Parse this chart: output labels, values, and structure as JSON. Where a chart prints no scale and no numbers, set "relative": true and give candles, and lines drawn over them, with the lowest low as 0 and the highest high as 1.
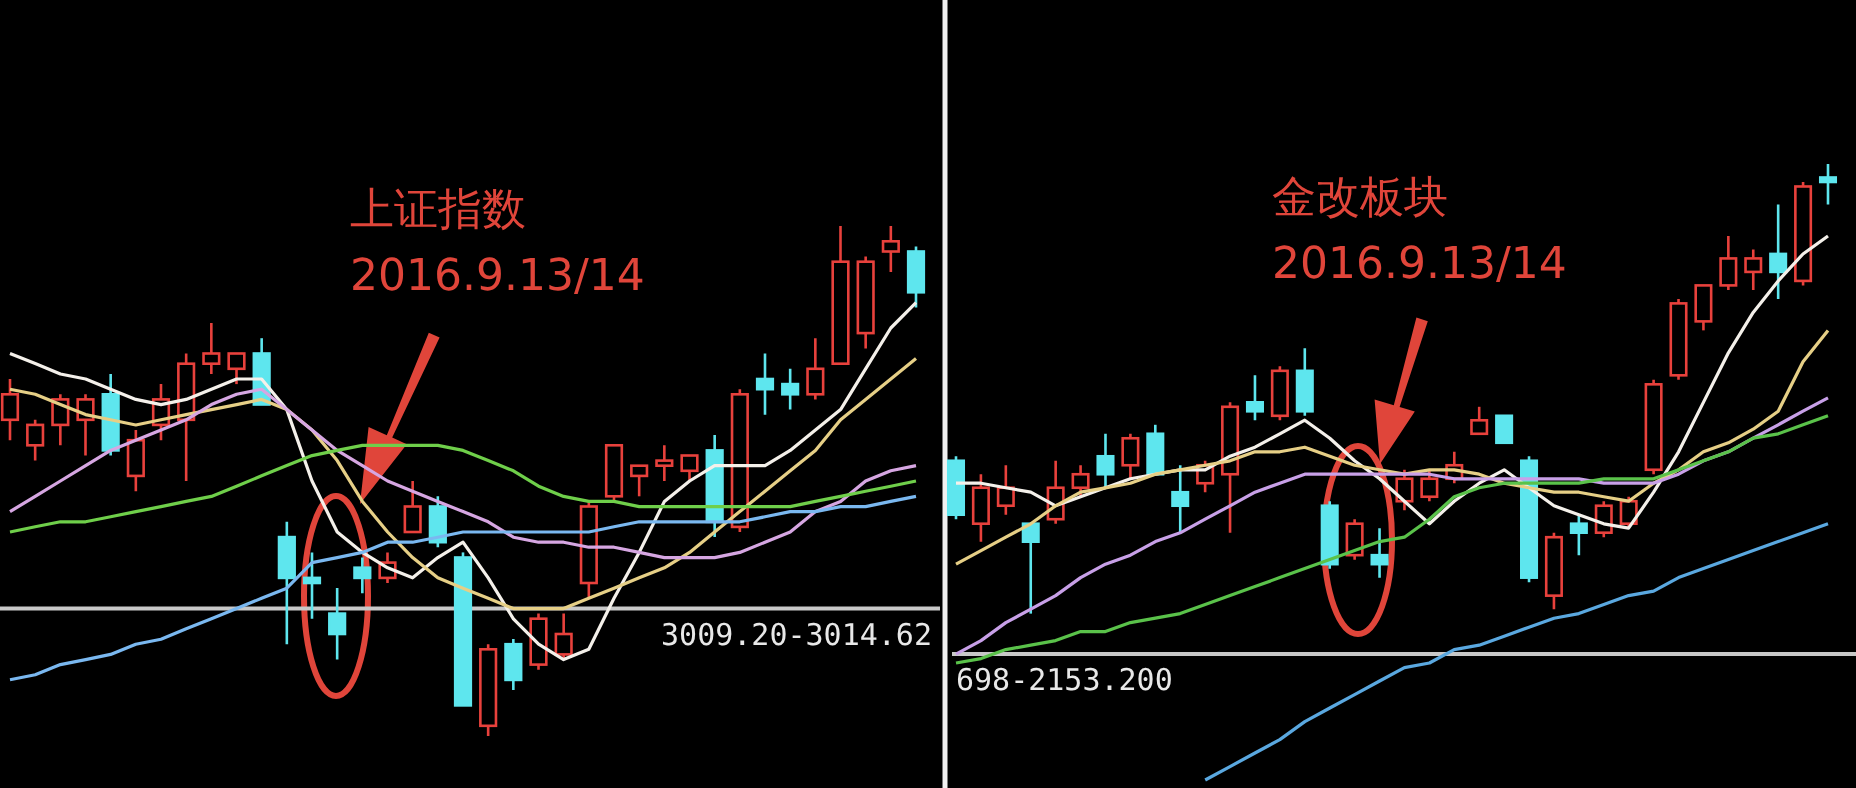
{
  "chart_data": [
    {
      "type": "candlestick",
      "relative": true,
      "categories": [
        null,
        null,
        null,
        null,
        null,
        null,
        null,
        null,
        null,
        null,
        null,
        null,
        null,
        null,
        null,
        null,
        null,
        null,
        null,
        null,
        null,
        null,
        null,
        null,
        null,
        null,
        null,
        null,
        null,
        null,
        null,
        null,
        null,
        null,
        null,
        null,
        null
      ],
      "ohlc": [
        [
          0.62,
          0.7,
          0.58,
          0.67
        ],
        [
          0.57,
          0.62,
          0.54,
          0.61
        ],
        [
          0.61,
          0.67,
          0.57,
          0.66
        ],
        [
          0.62,
          0.67,
          0.55,
          0.66
        ],
        [
          0.67,
          0.71,
          0.55,
          0.56
        ],
        [
          0.51,
          0.6,
          0.48,
          0.58
        ],
        [
          0.61,
          0.69,
          0.58,
          0.66
        ],
        [
          0.62,
          0.75,
          0.5,
          0.73
        ],
        [
          0.73,
          0.81,
          0.71,
          0.75
        ],
        [
          0.72,
          0.75,
          0.69,
          0.75
        ],
        [
          0.75,
          0.78,
          0.65,
          0.65
        ],
        [
          0.39,
          0.42,
          0.18,
          0.31
        ],
        [
          0.31,
          0.36,
          0.23,
          0.3
        ],
        [
          0.24,
          0.29,
          0.15,
          0.2
        ],
        [
          0.33,
          0.35,
          0.28,
          0.31
        ],
        [
          0.31,
          0.36,
          0.3,
          0.34
        ],
        [
          0.4,
          0.5,
          0.4,
          0.45
        ],
        [
          0.45,
          0.47,
          0.37,
          0.38
        ],
        [
          0.35,
          0.36,
          0.06,
          0.06
        ],
        [
          0.02,
          0.18,
          0,
          0.17
        ],
        [
          0.18,
          0.19,
          0.09,
          0.11
        ],
        [
          0.14,
          0.24,
          0.13,
          0.23
        ],
        [
          0.16,
          0.24,
          0.15,
          0.2
        ],
        [
          0.3,
          0.46,
          0.27,
          0.45
        ],
        [
          0.47,
          0.57,
          0.46,
          0.57
        ],
        [
          0.51,
          0.53,
          0.47,
          0.53
        ],
        [
          0.53,
          0.57,
          0.5,
          0.54
        ],
        [
          0.52,
          0.55,
          0.5,
          0.55
        ],
        [
          0.56,
          0.59,
          0.39,
          0.42
        ],
        [
          0.41,
          0.68,
          0.4,
          0.67
        ],
        [
          0.7,
          0.75,
          0.63,
          0.68
        ],
        [
          0.69,
          0.72,
          0.64,
          0.67
        ],
        [
          0.67,
          0.78,
          0.66,
          0.72
        ],
        [
          0.73,
          1,
          0.73,
          0.93
        ],
        [
          0.79,
          0.94,
          0.76,
          0.93
        ],
        [
          0.95,
          1,
          0.91,
          0.97
        ],
        [
          0.95,
          0.96,
          0.84,
          0.87
        ]
      ],
      "series": [
        {
          "type": "line",
          "color": "#f4f0ea",
          "values": [
            0.75,
            0.73,
            0.71,
            0.7,
            0.68,
            0.66,
            0.65,
            0.66,
            0.68,
            0.7,
            0.7,
            0.64,
            0.5,
            0.4,
            0.36,
            0.33,
            0.31,
            0.35,
            0.38,
            0.31,
            0.23,
            0.18,
            0.15,
            0.17,
            0.27,
            0.36,
            0.46,
            0.5,
            0.53,
            0.53,
            0.53,
            0.56,
            0.6,
            0.64,
            0.72,
            0.8,
            0.85
          ]
        },
        {
          "type": "line",
          "color": "#e6cf86",
          "values": [
            0.68,
            0.67,
            0.65,
            0.63,
            0.62,
            0.61,
            0.62,
            0.63,
            0.64,
            0.65,
            0.66,
            0.64,
            0.6,
            0.54,
            0.46,
            0.4,
            0.35,
            0.31,
            0.29,
            0.27,
            0.25,
            0.25,
            0.25,
            0.27,
            0.29,
            0.31,
            0.33,
            0.36,
            0.4,
            0.44,
            0.48,
            0.52,
            0.56,
            0.62,
            0.66,
            0.7,
            0.74
          ]
        },
        {
          "type": "line",
          "color": "#d6a6e2",
          "values": [
            0.44,
            0.47,
            0.5,
            0.53,
            0.56,
            0.58,
            0.6,
            0.62,
            0.65,
            0.67,
            0.68,
            0.64,
            0.6,
            0.56,
            0.53,
            0.5,
            0.48,
            0.46,
            0.44,
            0.42,
            0.39,
            0.38,
            0.38,
            0.37,
            0.37,
            0.36,
            0.35,
            0.35,
            0.35,
            0.36,
            0.38,
            0.4,
            0.44,
            0.46,
            0.5,
            0.52,
            0.53
          ]
        },
        {
          "type": "line",
          "color": "#6fcf4a",
          "values": [
            0.4,
            0.41,
            0.42,
            0.42,
            0.43,
            0.44,
            0.45,
            0.46,
            0.47,
            0.49,
            0.51,
            0.53,
            0.55,
            0.56,
            0.57,
            0.57,
            0.57,
            0.57,
            0.56,
            0.54,
            0.52,
            0.49,
            0.47,
            0.46,
            0.46,
            0.45,
            0.45,
            0.45,
            0.45,
            0.45,
            0.45,
            0.45,
            0.46,
            0.47,
            0.48,
            0.49,
            0.5
          ]
        },
        {
          "type": "line",
          "color": "#7ab8f0",
          "values": [
            0.11,
            0.12,
            0.14,
            0.15,
            0.16,
            0.18,
            0.19,
            0.21,
            0.23,
            0.25,
            0.27,
            0.29,
            0.34,
            0.35,
            0.36,
            0.38,
            0.38,
            0.39,
            0.4,
            0.4,
            0.4,
            0.4,
            0.4,
            0.4,
            0.41,
            0.42,
            0.42,
            0.42,
            0.42,
            0.42,
            0.43,
            0.44,
            0.44,
            0.45,
            0.45,
            0.46,
            0.47
          ]
        }
      ],
      "ref_lines": [
        {
          "axis": "y",
          "value": 0.25,
          "color": "#c8c8c8"
        }
      ],
      "annotations": [
        "上证指数",
        "2016.9.13/14",
        "3009.20-3014.62"
      ]
    },
    {
      "type": "candlestick",
      "relative": true,
      "categories": [
        null,
        null,
        null,
        null,
        null,
        null,
        null,
        null,
        null,
        null,
        null,
        null,
        null,
        null,
        null,
        null,
        null,
        null,
        null,
        null,
        null,
        null,
        null,
        null,
        null,
        null,
        null,
        null,
        null,
        null,
        null,
        null,
        null,
        null,
        null,
        null
      ],
      "ohlc": [
        [
          0.34,
          0.35,
          0.21,
          0.22
        ],
        [
          0.2,
          0.31,
          0.16,
          0.28
        ],
        [
          0.24,
          0.33,
          0.22,
          0.28
        ],
        [
          0.2,
          0.2,
          0,
          0.16
        ],
        [
          0.21,
          0.34,
          0.2,
          0.28
        ],
        [
          0.28,
          0.33,
          0.26,
          0.31
        ],
        [
          0.35,
          0.4,
          0.28,
          0.31
        ],
        [
          0.33,
          0.4,
          0.3,
          0.39
        ],
        [
          0.4,
          0.42,
          0.31,
          0.31
        ],
        [
          0.27,
          0.33,
          0.18,
          0.24
        ],
        [
          0.29,
          0.34,
          0.27,
          0.33
        ],
        [
          0.31,
          0.47,
          0.18,
          0.46
        ],
        [
          0.47,
          0.53,
          0.43,
          0.45
        ],
        [
          0.44,
          0.55,
          0.43,
          0.54
        ],
        [
          0.54,
          0.59,
          0.44,
          0.45
        ],
        [
          0.24,
          0.25,
          0.1,
          0.11
        ],
        [
          0.13,
          0.21,
          0.12,
          0.2
        ],
        [
          0.13,
          0.19,
          0.08,
          0.11
        ],
        [
          0.25,
          0.32,
          0.23,
          0.3
        ],
        [
          0.26,
          0.32,
          0.25,
          0.3
        ],
        [
          0.3,
          0.36,
          0.29,
          0.33
        ],
        [
          0.4,
          0.46,
          0.4,
          0.43
        ],
        [
          0.44,
          0.44,
          0.38,
          0.38
        ],
        [
          0.34,
          0.35,
          0.07,
          0.08
        ],
        [
          0.04,
          0.18,
          0.01,
          0.17
        ],
        [
          0.2,
          0.22,
          0.13,
          0.18
        ],
        [
          0.18,
          0.25,
          0.17,
          0.24
        ],
        [
          0.2,
          0.26,
          0.19,
          0.25
        ],
        [
          0.32,
          0.52,
          0.31,
          0.51
        ],
        [
          0.53,
          0.7,
          0.52,
          0.69
        ],
        [
          0.65,
          0.73,
          0.63,
          0.73
        ],
        [
          0.73,
          0.84,
          0.72,
          0.79
        ],
        [
          0.76,
          0.81,
          0.72,
          0.79
        ],
        [
          0.8,
          0.91,
          0.7,
          0.76
        ],
        [
          0.74,
          0.96,
          0.73,
          0.95
        ],
        [
          0.97,
          1,
          0.91,
          0.96
        ]
      ],
      "series": [
        {
          "type": "line",
          "color": "#f4f0ea",
          "values": [
            0.29,
            0.29,
            0.28,
            0.27,
            0.24,
            0.26,
            0.28,
            0.3,
            0.31,
            0.32,
            0.32,
            0.35,
            0.37,
            0.4,
            0.43,
            0.39,
            0.34,
            0.3,
            0.25,
            0.2,
            0.25,
            0.29,
            0.32,
            0.28,
            0.24,
            0.22,
            0.2,
            0.19,
            0.27,
            0.36,
            0.47,
            0.58,
            0.67,
            0.74,
            0.8,
            0.84
          ]
        },
        {
          "type": "line",
          "color": "#e6cf86",
          "values": [
            0.11,
            0.14,
            0.17,
            0.2,
            0.24,
            0.27,
            0.28,
            0.29,
            0.31,
            0.32,
            0.33,
            0.34,
            0.36,
            0.36,
            0.37,
            0.35,
            0.33,
            0.32,
            0.31,
            0.32,
            0.32,
            0.31,
            0.29,
            0.28,
            0.27,
            0.27,
            0.26,
            0.25,
            0.29,
            0.32,
            0.36,
            0.38,
            0.41,
            0.45,
            0.56,
            0.63
          ]
        },
        {
          "type": "line",
          "color": "#c8a0e8",
          "values": [
            -0.09,
            -0.06,
            -0.02,
            0.01,
            0.04,
            0.08,
            0.11,
            0.13,
            0.16,
            0.18,
            0.21,
            0.24,
            0.27,
            0.29,
            0.31,
            0.31,
            0.31,
            0.31,
            0.31,
            0.31,
            0.3,
            0.3,
            0.3,
            0.3,
            0.3,
            0.3,
            0.29,
            0.29,
            0.29,
            0.31,
            0.34,
            0.36,
            0.39,
            0.42,
            0.45,
            0.48
          ]
        },
        {
          "type": "line",
          "color": "#5ac24a",
          "values": [
            -0.11,
            -0.1,
            -0.08,
            -0.07,
            -0.06,
            -0.04,
            -0.04,
            -0.02,
            -0.01,
            0.0,
            0.02,
            0.04,
            0.06,
            0.08,
            0.1,
            0.12,
            0.14,
            0.16,
            0.17,
            0.21,
            0.26,
            0.28,
            0.29,
            0.29,
            0.29,
            0.29,
            0.3,
            0.3,
            0.3,
            0.32,
            0.34,
            0.36,
            0.39,
            0.4,
            0.42,
            0.44
          ]
        },
        {
          "type": "line",
          "color": "#5aa8e0",
          "values": [
            null,
            null,
            null,
            null,
            null,
            null,
            null,
            null,
            null,
            null,
            -0.37,
            -0.34,
            -0.31,
            -0.28,
            -0.24,
            -0.21,
            -0.18,
            -0.15,
            -0.12,
            -0.11,
            -0.08,
            -0.07,
            -0.05,
            -0.03,
            -0.01,
            0.0,
            0.02,
            0.04,
            0.05,
            0.08,
            0.1,
            0.12,
            0.14,
            0.16,
            0.18,
            0.2
          ]
        }
      ],
      "ref_lines": [
        {
          "axis": "y",
          "value": -0.09,
          "color": "#c8c8c8"
        }
      ],
      "annotations": [
        "金改板块",
        "2016.9.13/14",
        "698-2153.200"
      ]
    }
  ]
}
